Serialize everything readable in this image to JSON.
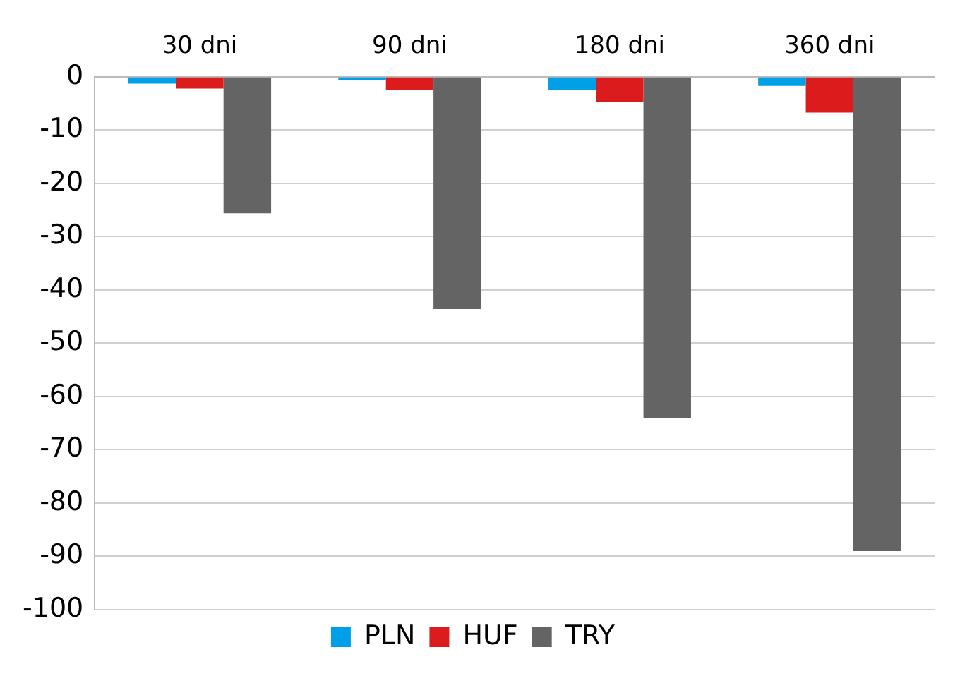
{
  "chart_data": {
    "type": "bar",
    "categories": [
      "30 dni",
      "90 dni",
      "180 dni",
      "360 dni"
    ],
    "series": [
      {
        "name": "PLN",
        "color": "#00a0e8",
        "values": [
          -1.3,
          -0.7,
          -2.5,
          -1.7
        ]
      },
      {
        "name": "HUF",
        "color": "#dc1c1c",
        "values": [
          -2.2,
          -2.5,
          -4.8,
          -6.7
        ]
      },
      {
        "name": "TRY",
        "color": "#646464",
        "values": [
          -25.6,
          -43.6,
          -64,
          -89
        ]
      }
    ],
    "ylim": [
      -100,
      0
    ],
    "yticks": [
      -100,
      -90,
      -80,
      -70,
      -60,
      -50,
      -40,
      -30,
      -20,
      -10,
      0
    ],
    "grid": "y",
    "legend": "bottom"
  }
}
